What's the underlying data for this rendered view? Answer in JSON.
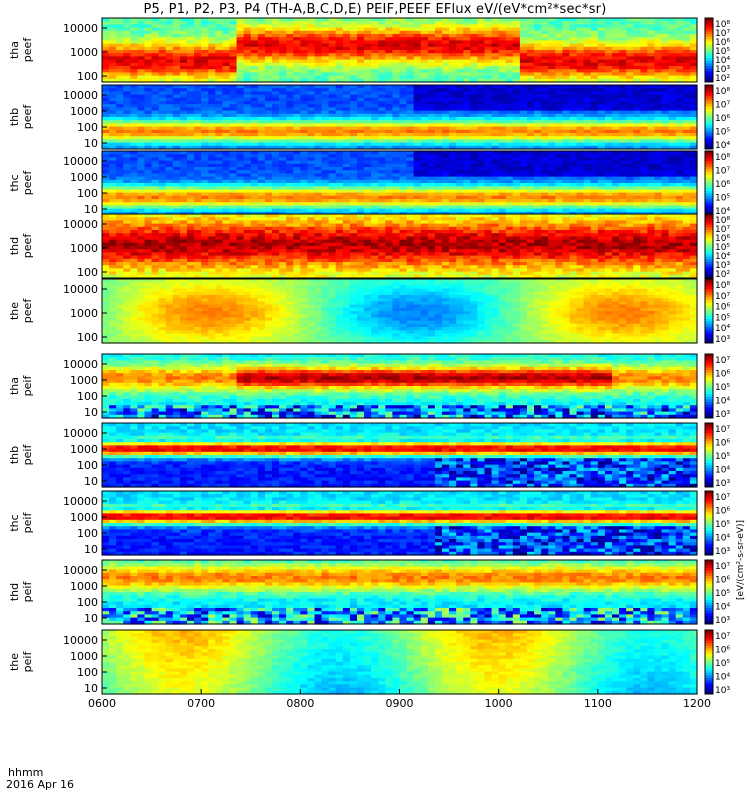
{
  "title": "P5, P1, P2, P3, P4 (TH-A,B,C,D,E) PEIF,PEEF EFlux eV/(eV*cm²*sec*sr)",
  "footer": {
    "time_label": "hhmm",
    "date_label": "2016 Apr 16"
  },
  "colorbar_unit": "[eV/(cm²-s-sr-eV)]",
  "chart_data": {
    "type": "heatmap",
    "x_ticks": [
      "0600",
      "0700",
      "0800",
      "0900",
      "1000",
      "1100",
      "1200"
    ],
    "panels": [
      {
        "label": [
          "tha",
          "peef"
        ],
        "y_ticks": [
          "10000",
          "1000",
          "100"
        ],
        "cbar_ticks": [
          "10⁸",
          "10⁷",
          "10⁶",
          "10⁵",
          "10⁴",
          "10³",
          "10²"
        ],
        "kind": "ehot"
      },
      {
        "label": [
          "thb",
          "peef"
        ],
        "y_ticks": [
          "10000",
          "1000",
          "100",
          "10"
        ],
        "cbar_ticks": [
          "10⁸",
          "10⁷",
          "10⁶",
          "10⁵",
          "10⁴"
        ],
        "kind": "ecold",
        "gap": 0.52
      },
      {
        "label": [
          "thc",
          "peef"
        ],
        "y_ticks": [
          "10000",
          "1000",
          "100",
          "10"
        ],
        "cbar_ticks": [
          "10⁸",
          "10⁷",
          "10⁶",
          "10⁵",
          "10⁴"
        ],
        "kind": "ecold",
        "gap": 0.52
      },
      {
        "label": [
          "thd",
          "peef"
        ],
        "y_ticks": [
          "10000",
          "1000",
          "100"
        ],
        "cbar_ticks": [
          "10⁸",
          "10⁷",
          "10⁶",
          "10⁵",
          "10⁴",
          "10³",
          "10²"
        ],
        "kind": "ehot2"
      },
      {
        "label": [
          "the",
          "peef"
        ],
        "y_ticks": [
          "10000",
          "1000",
          "100"
        ],
        "cbar_ticks": [
          "10⁸",
          "10⁷",
          "10⁶",
          "10⁵",
          "10⁴",
          "10³"
        ],
        "kind": "esmooth"
      },
      {
        "label": [
          "tha",
          "peif"
        ],
        "y_ticks": [
          "10000",
          "1000",
          "100",
          "10"
        ],
        "cbar_ticks": [
          "10⁷",
          "10⁶",
          "10⁵",
          "10⁴",
          "10³"
        ],
        "kind": "ihot"
      },
      {
        "label": [
          "thb",
          "peif"
        ],
        "y_ticks": [
          "10000",
          "1000",
          "100",
          "10"
        ],
        "cbar_ticks": [
          "10⁷",
          "10⁶",
          "10⁵",
          "10⁴",
          "10³"
        ],
        "kind": "icold",
        "gap": 0.55
      },
      {
        "label": [
          "thc",
          "peif"
        ],
        "y_ticks": [
          "10000",
          "1000",
          "100",
          "10"
        ],
        "cbar_ticks": [
          "10⁷",
          "10⁶",
          "10⁵",
          "10⁴",
          "10³"
        ],
        "kind": "icold",
        "gap": 0.55
      },
      {
        "label": [
          "thd",
          "peif"
        ],
        "y_ticks": [
          "10000",
          "1000",
          "100",
          "10"
        ],
        "cbar_ticks": [
          "10⁷",
          "10⁶",
          "10⁵",
          "10⁴",
          "10³"
        ],
        "kind": "ihot2"
      },
      {
        "label": [
          "the",
          "peif"
        ],
        "y_ticks": [
          "10000",
          "1000",
          "100",
          "10"
        ],
        "cbar_ticks": [
          "10⁷",
          "10⁶",
          "10⁵",
          "10⁴",
          "10³"
        ],
        "kind": "ismooth"
      }
    ]
  }
}
